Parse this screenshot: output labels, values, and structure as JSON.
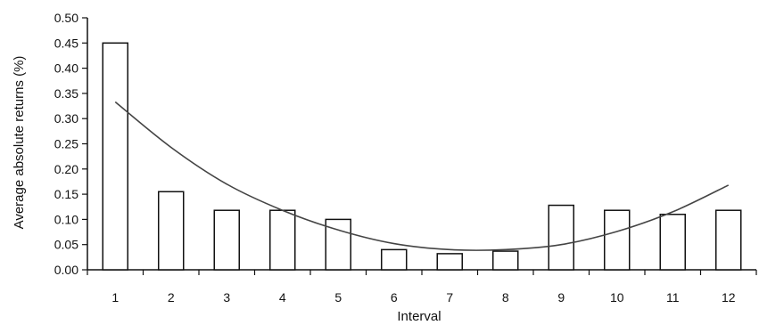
{
  "chart_data": {
    "type": "bar",
    "title": "",
    "xlabel": "Interval",
    "ylabel": "Average absolute returns (%)",
    "categories": [
      "1",
      "2",
      "3",
      "4",
      "5",
      "6",
      "7",
      "8",
      "9",
      "10",
      "11",
      "12"
    ],
    "series": [
      {
        "values": [
          0.45,
          0.155,
          0.118,
          0.118,
          0.1,
          0.04,
          0.032,
          0.037,
          0.128,
          0.118,
          0.11,
          0.118
        ]
      }
    ],
    "trendline": {
      "type": "line",
      "x": [
        "1",
        "2",
        "3",
        "4",
        "5",
        "6",
        "7",
        "8",
        "9",
        "10",
        "11",
        "12"
      ],
      "values": [
        0.333,
        0.243,
        0.17,
        0.118,
        0.079,
        0.052,
        0.04,
        0.04,
        0.05,
        0.076,
        0.115,
        0.168
      ]
    },
    "ylim": [
      0,
      0.5
    ],
    "yticks": [
      "0.00",
      "0.05",
      "0.10",
      "0.15",
      "0.20",
      "0.25",
      "0.30",
      "0.35",
      "0.40",
      "0.45",
      "0.50"
    ],
    "grid": false,
    "legend": "none",
    "colors": {
      "bar_fill": "#ffffff",
      "bar_stroke": "#111111",
      "line": "#444444"
    }
  }
}
